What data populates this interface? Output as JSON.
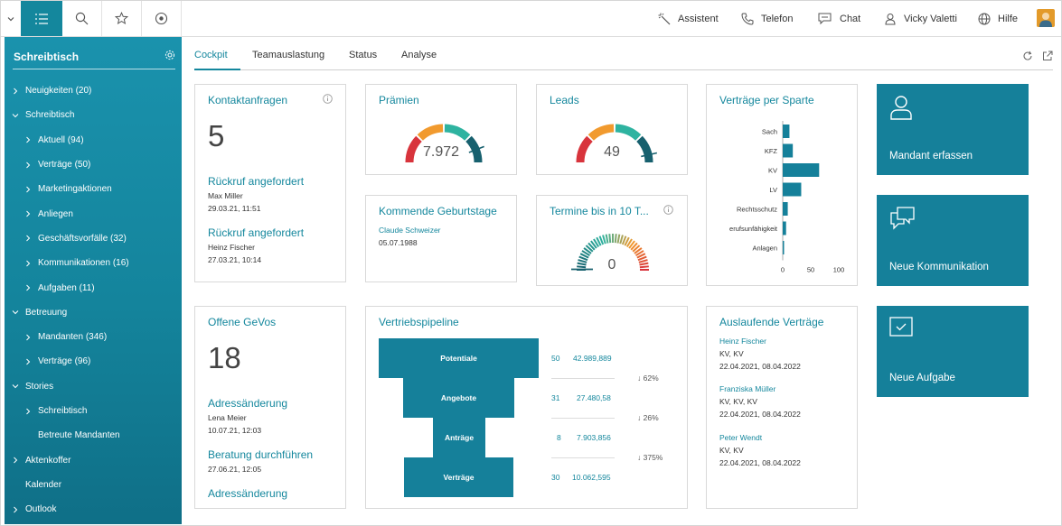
{
  "topbar": {
    "assistant": "Assistent",
    "phone": "Telefon",
    "chat": "Chat",
    "user": "Vicky Valetti",
    "help": "Hilfe"
  },
  "sidebar": {
    "title": "Schreibtisch",
    "items": [
      {
        "label": "Neuigkeiten (20)"
      },
      {
        "label": "Schreibtisch"
      },
      {
        "label": "Aktuell (94)"
      },
      {
        "label": "Verträge (50)"
      },
      {
        "label": "Marketingaktionen"
      },
      {
        "label": "Anliegen"
      },
      {
        "label": "Geschäftsvorfälle (32)"
      },
      {
        "label": "Kommunikationen (16)"
      },
      {
        "label": "Aufgaben (11)"
      },
      {
        "label": "Betreuung"
      },
      {
        "label": "Mandanten (346)"
      },
      {
        "label": "Verträge (96)"
      },
      {
        "label": "Stories"
      },
      {
        "label": "Schreibtisch"
      },
      {
        "label": "Betreute Mandanten"
      },
      {
        "label": "Aktenkoffer"
      },
      {
        "label": "Kalender"
      },
      {
        "label": "Outlook"
      }
    ]
  },
  "tabs": {
    "cockpit": "Cockpit",
    "teamauslastung": "Teamauslastung",
    "status": "Status",
    "analyse": "Analyse"
  },
  "kontakt": {
    "title": "Kontaktanfragen",
    "count": "5",
    "items": [
      {
        "title": "Rückruf angefordert",
        "name": "Max Miller",
        "date": "29.03.21, 11:51"
      },
      {
        "title": "Rückruf angefordert",
        "name": "Heinz Fischer",
        "date": "27.03.21, 10:14"
      }
    ]
  },
  "praemien": {
    "title": "Prämien",
    "value": "7.972",
    "level": 0.88
  },
  "leads": {
    "title": "Leads",
    "value": "49",
    "level": 0.93
  },
  "geburtstage": {
    "title": "Kommende Geburtstage",
    "name": "Claude Schweizer",
    "date": "05.07.1988"
  },
  "termine": {
    "title": "Termine bis in 10 T...",
    "value": "0",
    "level": 0
  },
  "sparte": {
    "title": "Verträge per Sparte",
    "chart_data": {
      "type": "bar",
      "orientation": "horizontal",
      "categories": [
        "Sach",
        "KFZ",
        "KV",
        "LV",
        "Rechtsschutz",
        "erufsunfähigkeit",
        "Anlagen"
      ],
      "values": [
        12,
        18,
        65,
        33,
        9,
        6,
        2
      ],
      "xlim": [
        0,
        100
      ],
      "xticks": [
        "0",
        "50",
        "100"
      ],
      "color": "#15809a"
    }
  },
  "actions": {
    "mandant": "Mandant erfassen",
    "kommunikation": "Neue Kommunikation",
    "aufgabe": "Neue Aufgabe"
  },
  "gevos": {
    "title": "Offene GeVos",
    "count": "18",
    "items": [
      {
        "title": "Adressänderung",
        "name": "Lena Meier",
        "date": "10.07.21, 12:03"
      },
      {
        "title": "Beratung durchführen",
        "date": "27.06.21, 12:05"
      },
      {
        "title": "Adressänderung"
      }
    ]
  },
  "pipeline": {
    "title": "Vertriebspipeline",
    "stages": [
      {
        "label": "Potentiale",
        "count": "50",
        "amount": "42.989,889"
      },
      {
        "label": "Angebote",
        "count": "31",
        "amount": "27.480,58"
      },
      {
        "label": "Anträge",
        "count": "8",
        "amount": "7.903,856"
      },
      {
        "label": "Verträge",
        "count": "30",
        "amount": "10.062,595"
      }
    ],
    "conversions": [
      "↓ 62%",
      "↓ 26%",
      "↓ 375%"
    ]
  },
  "auslaufend": {
    "title": "Auslaufende Verträge",
    "items": [
      {
        "name": "Heinz Fischer",
        "sparten": "KV, KV",
        "dates": "22.04.2021, 08.04.2022"
      },
      {
        "name": "Franziska Müller",
        "sparten": "KV, KV, KV",
        "dates": "22.04.2021, 08.04.2022"
      },
      {
        "name": "Peter Wendt",
        "sparten": "KV, KV",
        "dates": "22.04.2021, 08.04.2022"
      }
    ]
  }
}
